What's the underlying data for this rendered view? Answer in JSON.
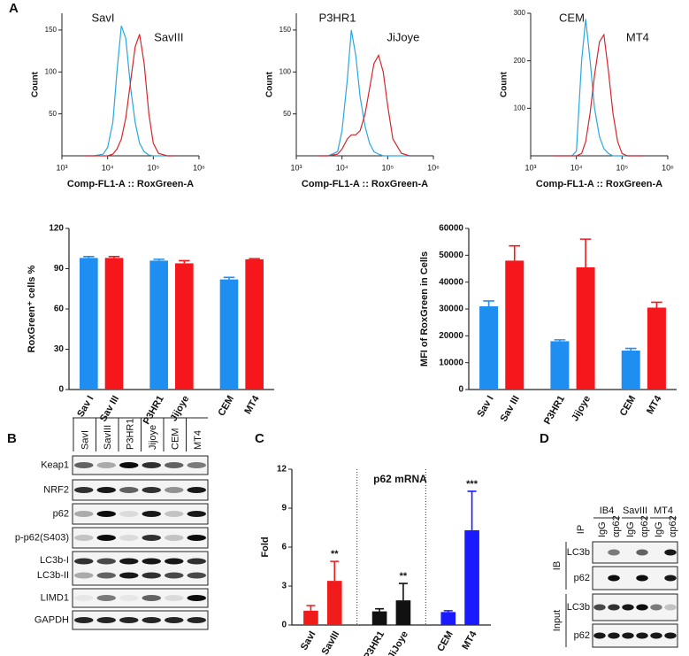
{
  "panel_labels": [
    "A",
    "B",
    "C",
    "D"
  ],
  "chart_data": [
    {
      "type": "histogram-line",
      "ylabel": "Count",
      "xlabel": "Comp-FL1-A :: RoxGreen-A",
      "xlog": true,
      "xlim": [
        1000,
        1000000
      ],
      "xticks": [
        {
          "value": 1000,
          "label": "10³"
        },
        {
          "value": 10000,
          "label": "10⁴"
        },
        {
          "value": 100000,
          "label": "10⁵"
        },
        {
          "value": 1000000,
          "label": "10⁶"
        }
      ],
      "ylim": [
        0,
        170
      ],
      "yticks": [
        50,
        100,
        150
      ],
      "x": [
        3000,
        5000,
        8000,
        10000,
        13000,
        16000,
        20000,
        25000,
        32000,
        40000,
        50000,
        63000,
        80000,
        100000,
        130000,
        200000,
        300000
      ],
      "series": [
        {
          "name": "SavI",
          "color": "#2aa7df",
          "values": [
            0,
            0,
            2,
            10,
            40,
            100,
            155,
            140,
            80,
            40,
            15,
            5,
            1,
            0,
            0,
            0,
            0
          ]
        },
        {
          "name": "SavIII",
          "color": "#d6252b",
          "values": [
            0,
            0,
            0,
            0,
            2,
            8,
            20,
            45,
            90,
            130,
            145,
            110,
            50,
            15,
            3,
            0,
            0
          ]
        }
      ]
    },
    {
      "type": "histogram-line",
      "ylabel": "Count",
      "xlabel": "Comp-FL1-A :: RoxGreen-A",
      "xlog": true,
      "xlim": [
        1000,
        1000000
      ],
      "xticks": [
        {
          "value": 1000,
          "label": "10³"
        },
        {
          "value": 10000,
          "label": "10⁴"
        },
        {
          "value": 100000,
          "label": "10⁵"
        },
        {
          "value": 1000000,
          "label": "10⁶"
        }
      ],
      "ylim": [
        0,
        170
      ],
      "yticks": [
        50,
        100,
        150
      ],
      "x": [
        3000,
        5000,
        8000,
        10000,
        13000,
        16000,
        20000,
        25000,
        32000,
        40000,
        50000,
        63000,
        80000,
        100000,
        130000,
        200000,
        300000
      ],
      "series": [
        {
          "name": "P3HR1",
          "color": "#2aa7df",
          "values": [
            0,
            0,
            5,
            30,
            90,
            150,
            120,
            70,
            35,
            15,
            5,
            2,
            0,
            0,
            0,
            0,
            0
          ]
        },
        {
          "name": "JiJoye",
          "color": "#d6252b",
          "values": [
            0,
            0,
            2,
            8,
            20,
            25,
            25,
            30,
            50,
            80,
            110,
            120,
            100,
            60,
            20,
            3,
            0
          ]
        }
      ]
    },
    {
      "type": "histogram-line",
      "ylabel": "Count",
      "xlabel": "Comp-FL1-A :: RoxGreen-A",
      "xlog": true,
      "xlim": [
        1000,
        1000000
      ],
      "xticks": [
        {
          "value": 1000,
          "label": "10³"
        },
        {
          "value": 10000,
          "label": "10⁴"
        },
        {
          "value": 100000,
          "label": "10⁵"
        },
        {
          "value": 1000000,
          "label": "10⁶"
        }
      ],
      "ylim": [
        0,
        300
      ],
      "yticks": [
        100,
        200,
        300
      ],
      "x": [
        3000,
        5000,
        8000,
        10000,
        13000,
        16000,
        20000,
        25000,
        32000,
        40000,
        50000,
        63000,
        80000,
        100000,
        130000,
        200000,
        300000
      ],
      "series": [
        {
          "name": "CEM",
          "color": "#2aa7df",
          "values": [
            0,
            0,
            0,
            10,
            200,
            288,
            200,
            100,
            40,
            15,
            5,
            0,
            0,
            0,
            0,
            0,
            0
          ]
        },
        {
          "name": "MT4",
          "color": "#d6252b",
          "values": [
            0,
            0,
            0,
            0,
            5,
            30,
            90,
            170,
            240,
            255,
            180,
            90,
            30,
            5,
            0,
            0,
            0
          ]
        }
      ]
    },
    {
      "type": "bar",
      "ylabel": "RoxGreen⁺ cells %",
      "categories": [
        "Sav I",
        "Sav III",
        "P3HR1",
        "Jijoye",
        "CEM",
        "MT4"
      ],
      "values": [
        98,
        98,
        96,
        94,
        82,
        97
      ],
      "errors": [
        1,
        1,
        1,
        2,
        1.5,
        0.5
      ],
      "colors": [
        "#1f8ef1",
        "#f5171b",
        "#1f8ef1",
        "#f5171b",
        "#1f8ef1",
        "#f5171b"
      ],
      "ylim": [
        0,
        120
      ],
      "yticks": [
        0,
        30,
        60,
        90,
        120
      ]
    },
    {
      "type": "bar",
      "ylabel": "MFI of RoxGreen in  Cells",
      "categories": [
        "Sav I",
        "Sav III",
        "P3HR1",
        "Jijoye",
        "CEM",
        "MT4"
      ],
      "values": [
        31000,
        48000,
        18000,
        45500,
        14500,
        30500
      ],
      "errors": [
        2000,
        5500,
        500,
        10500,
        800,
        2000
      ],
      "colors": [
        "#1f8ef1",
        "#f5171b",
        "#1f8ef1",
        "#f5171b",
        "#1f8ef1",
        "#f5171b"
      ],
      "ylim": [
        0,
        60000
      ],
      "yticks": [
        0,
        10000,
        20000,
        30000,
        40000,
        50000,
        60000
      ]
    },
    {
      "type": "bar",
      "title": "p62 mRNA",
      "ylabel": "Fold",
      "categories": [
        "SavI",
        "SavIII",
        "P3HR1",
        "JiJoye",
        "CEM",
        "MT4"
      ],
      "values": [
        1.1,
        3.4,
        1.05,
        1.9,
        1.0,
        7.3
      ],
      "errors": [
        0.4,
        1.5,
        0.2,
        1.3,
        0.1,
        3.0
      ],
      "significance": [
        null,
        "**",
        null,
        "**",
        null,
        "***"
      ],
      "colors": [
        "#f01b1b",
        "#f01b1b",
        "#111111",
        "#111111",
        "#1a1aff",
        "#1a1aff"
      ],
      "ylim": [
        0,
        12
      ],
      "yticks": [
        0,
        3,
        6,
        9,
        12
      ],
      "separators": true
    }
  ],
  "blot_b": {
    "lanes": [
      "SavI",
      "SavIII",
      "P3HR1",
      "Jijoye",
      "CEM",
      "MT4"
    ],
    "rows": [
      "Keap1",
      "NRF2",
      "p62",
      "p-p62(S403)",
      "LC3b-I",
      "LC3b-II",
      "LIMD1",
      "GAPDH"
    ]
  },
  "blot_d": {
    "ip_label": "IP",
    "groups": [
      "IB4",
      "SavIII",
      "MT4"
    ],
    "lanes": [
      "IgG",
      "αp62",
      "IgG",
      "αp62",
      "IgG",
      "αp62"
    ],
    "sections": [
      {
        "name": "IB",
        "rows": [
          "LC3b",
          "p62"
        ]
      },
      {
        "name": "Input",
        "rows": [
          "LC3b",
          "p62"
        ]
      }
    ]
  }
}
